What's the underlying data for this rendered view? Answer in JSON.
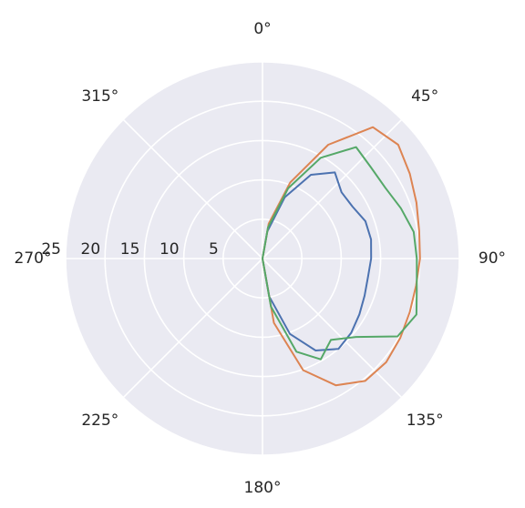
{
  "chart_data": {
    "type": "line",
    "projection": "polar",
    "angle_zero": "top",
    "angle_direction": "clockwise",
    "angle_ticks": [
      0,
      45,
      90,
      135,
      180,
      225,
      270,
      315
    ],
    "angle_tick_labels": [
      "0°",
      "45°",
      "90°",
      "135°",
      "180°",
      "225°",
      "270°",
      "315°"
    ],
    "radial_ticks": [
      5,
      10,
      15,
      20,
      25
    ],
    "radial_tick_labels": [
      "5",
      "10",
      "15",
      "20",
      "25"
    ],
    "radial_label_angle": 270,
    "rlim": [
      0,
      25
    ],
    "grid": true,
    "background_color": "#eaeaf2",
    "series": [
      {
        "color": "#4c72b0",
        "theta": [
          0,
          10,
          20,
          30,
          40,
          50,
          60,
          70,
          80,
          90,
          100,
          110,
          120,
          130,
          140,
          150,
          160,
          170,
          180
        ],
        "r": [
          0,
          3.5,
          8.3,
          12.3,
          14.3,
          13.1,
          13.2,
          13.9,
          14.0,
          13.8,
          13.6,
          13.8,
          14.2,
          14.7,
          15.0,
          13.5,
          10.2,
          4.9,
          0
        ]
      },
      {
        "color": "#dd8452",
        "theta": [
          0,
          10,
          20,
          30,
          40,
          50,
          60,
          70,
          80,
          90,
          100,
          110,
          120,
          130,
          140,
          150,
          160,
          170,
          180
        ],
        "r": [
          0,
          4.5,
          10.3,
          16.7,
          21.8,
          22.5,
          21.6,
          20.8,
          20.2,
          20.0,
          19.8,
          19.9,
          20.2,
          20.5,
          20.3,
          18.6,
          15.1,
          8.3,
          0
        ]
      },
      {
        "color": "#55a868",
        "theta": [
          0,
          10,
          20,
          30,
          40,
          50,
          60,
          70,
          80,
          90,
          100,
          110,
          120,
          130,
          140,
          150,
          160,
          170,
          180
        ],
        "r": [
          0,
          4.0,
          9.5,
          14.8,
          18.5,
          18.0,
          18.0,
          18.7,
          19.5,
          19.6,
          19.9,
          20.8,
          19.8,
          15.5,
          13.5,
          14.8,
          12.6,
          6.2,
          0
        ]
      }
    ]
  }
}
